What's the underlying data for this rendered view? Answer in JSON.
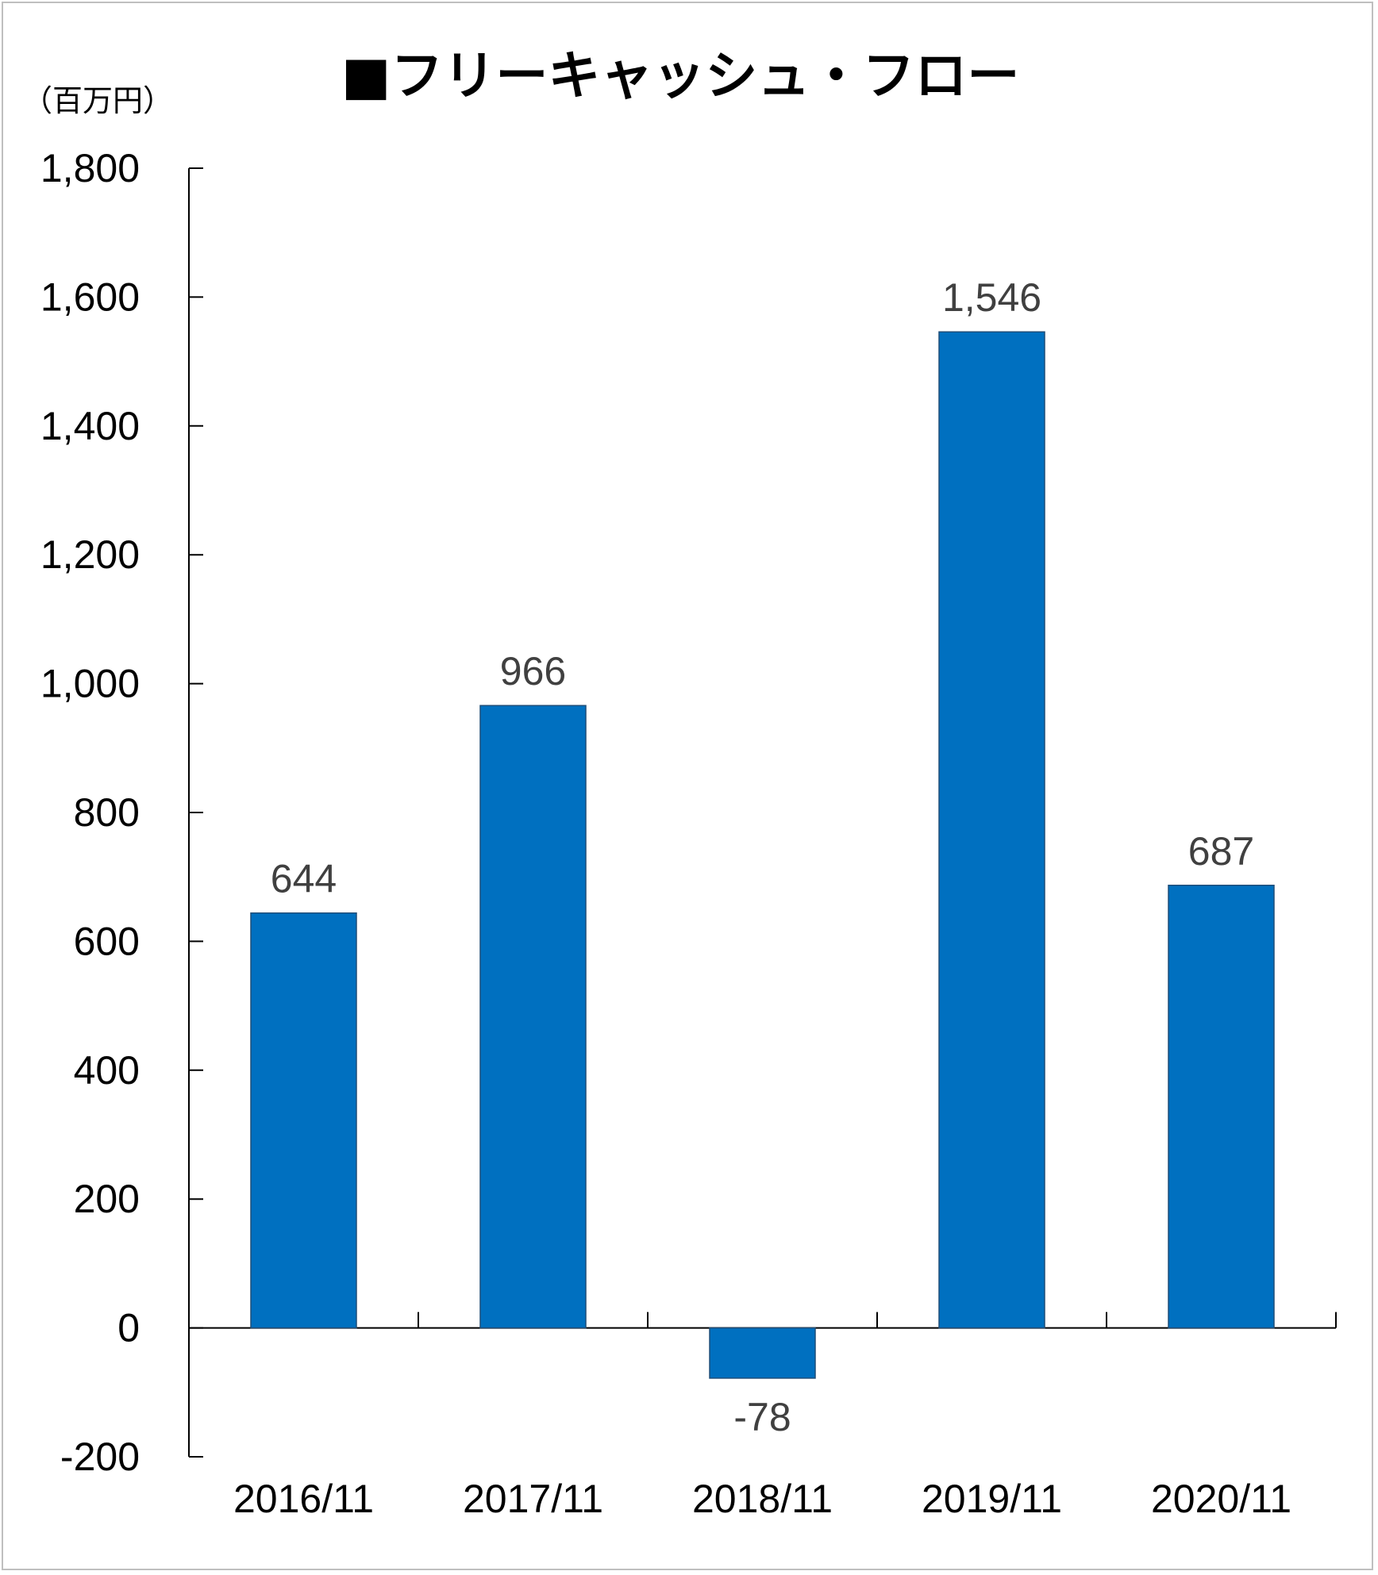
{
  "chart_data": {
    "type": "bar",
    "title": "■フリーキャッシュ・フロー",
    "unit_label": "（百万円）",
    "categories": [
      "2016/11",
      "2017/11",
      "2018/11",
      "2019/11",
      "2020/11"
    ],
    "values": [
      644,
      966,
      -78,
      1546,
      687
    ],
    "data_labels": [
      "644",
      "966",
      "-78",
      "1,546",
      "687"
    ],
    "y_ticks": [
      "1,800",
      "1,600",
      "1,400",
      "1,200",
      "1,000",
      "800",
      "600",
      "400",
      "200",
      "0",
      "-200"
    ],
    "ylim": [
      -200,
      1800
    ],
    "xlabel": "",
    "ylabel": "",
    "grid": false,
    "legend": "none",
    "bar_color": "#0070C0"
  }
}
